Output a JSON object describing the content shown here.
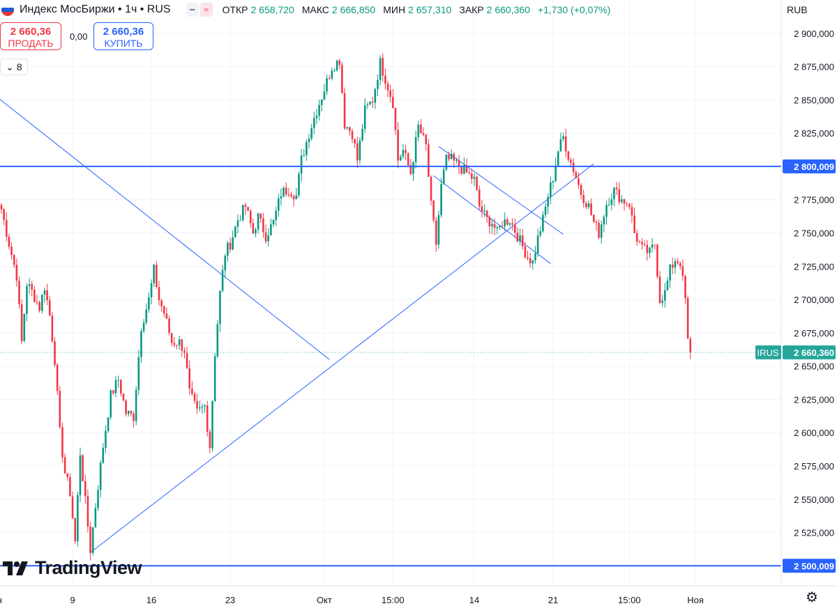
{
  "header": {
    "symbol": "Индекс МосБиржи • 1ч • RUS",
    "flag_colors": [
      "#ffffff",
      "#1e5bd8",
      "#e53935"
    ],
    "ohlc": [
      {
        "key": "ОТКР",
        "value": "2 658,720"
      },
      {
        "key": "МАКС",
        "value": "2 666,850"
      },
      {
        "key": "МИН",
        "value": "2 657,310"
      },
      {
        "key": "ЗАКР",
        "value": "2 660,360"
      }
    ],
    "change": "+1,730 (+0,07%)"
  },
  "trade": {
    "sell_price": "2 660,36",
    "sell_label": "ПРОДАТЬ",
    "spread": "0,00",
    "buy_price": "2 660,36",
    "buy_label": "КУПИТЬ"
  },
  "indicators_count": "8",
  "currency": "RUB",
  "logo_text": "TradingView",
  "colors": {
    "up": "#089981",
    "down": "#f23645",
    "hline": "#2962ff",
    "trendline": "#2962ff",
    "grid": "#f0f3fa",
    "price_tag": "#26a69a"
  },
  "chart_data": {
    "type": "candlestick",
    "ylim": [
      2485,
      2925
    ],
    "y_ticks": [
      2900,
      2875,
      2850,
      2825,
      2800,
      2775,
      2750,
      2725,
      2700,
      2675,
      2650,
      2625,
      2600,
      2575,
      2550,
      2525
    ],
    "y_tick_labels": [
      "2 900,000",
      "2 875,000",
      "2 850,000",
      "2 825,000",
      "2 800,000",
      "2 775,000",
      "2 750,000",
      "2 725,000",
      "2 700,000",
      "2 675,000",
      "2 650,000",
      "2 625,000",
      "2 600,000",
      "2 575,000",
      "2 550,000",
      "2 525,000"
    ],
    "x_ticks": [
      "Сен",
      "9",
      "16",
      "23",
      "Окт",
      "15:00",
      "14",
      "21",
      "15:00",
      "Ноя"
    ],
    "x_tick_index": [
      -3,
      28,
      59,
      90,
      127,
      154,
      186,
      217,
      247,
      273
    ],
    "horizontal_lines": [
      {
        "value": 2800.009,
        "label": "2 800,009"
      },
      {
        "value": 2500.009,
        "label": "2 500,009"
      }
    ],
    "last_price": {
      "value": 2660.36,
      "label": "2 660,360",
      "tag": "IRUS"
    },
    "trendlines": [
      {
        "p1": [
          -1,
          2851
        ],
        "p2": [
          129,
          2655
        ]
      },
      {
        "p1": [
          35,
          2510
        ],
        "p2": [
          233,
          2802
        ]
      },
      {
        "p1": [
          172,
          2815
        ],
        "p2": [
          221,
          2749
        ]
      },
      {
        "p1": [
          170,
          2793
        ],
        "p2": [
          216,
          2727
        ]
      }
    ],
    "price_path": [
      [
        0,
        2768
      ],
      [
        3,
        2742
      ],
      [
        6,
        2718
      ],
      [
        8,
        2668
      ],
      [
        10,
        2712
      ],
      [
        12,
        2706
      ],
      [
        15,
        2694
      ],
      [
        17,
        2710
      ],
      [
        19,
        2688
      ],
      [
        21,
        2655
      ],
      [
        23,
        2600
      ],
      [
        25,
        2570
      ],
      [
        27,
        2555
      ],
      [
        29,
        2518
      ],
      [
        31,
        2585
      ],
      [
        33,
        2548
      ],
      [
        35,
        2512
      ],
      [
        37,
        2545
      ],
      [
        40,
        2590
      ],
      [
        43,
        2628
      ],
      [
        46,
        2640
      ],
      [
        49,
        2615
      ],
      [
        52,
        2612
      ],
      [
        55,
        2680
      ],
      [
        58,
        2700
      ],
      [
        60,
        2722
      ],
      [
        62,
        2700
      ],
      [
        64,
        2690
      ],
      [
        67,
        2668
      ],
      [
        70,
        2668
      ],
      [
        72,
        2662
      ],
      [
        74,
        2630
      ],
      [
        77,
        2615
      ],
      [
        80,
        2620
      ],
      [
        82,
        2590
      ],
      [
        84,
        2660
      ],
      [
        86,
        2705
      ],
      [
        88,
        2735
      ],
      [
        90,
        2742
      ],
      [
        93,
        2760
      ],
      [
        96,
        2770
      ],
      [
        99,
        2750
      ],
      [
        101,
        2762
      ],
      [
        104,
        2748
      ],
      [
        107,
        2758
      ],
      [
        110,
        2780
      ],
      [
        113,
        2783
      ],
      [
        116,
        2778
      ],
      [
        118,
        2805
      ],
      [
        121,
        2825
      ],
      [
        124,
        2842
      ],
      [
        127,
        2858
      ],
      [
        130,
        2875
      ],
      [
        133,
        2880
      ],
      [
        135,
        2832
      ],
      [
        138,
        2825
      ],
      [
        140,
        2805
      ],
      [
        143,
        2842
      ],
      [
        146,
        2850
      ],
      [
        149,
        2878
      ],
      [
        152,
        2860
      ],
      [
        154,
        2848
      ],
      [
        156,
        2805
      ],
      [
        158,
        2812
      ],
      [
        161,
        2795
      ],
      [
        164,
        2830
      ],
      [
        167,
        2815
      ],
      [
        169,
        2770
      ],
      [
        171,
        2742
      ],
      [
        173,
        2785
      ],
      [
        175,
        2805
      ],
      [
        177,
        2805
      ],
      [
        180,
        2800
      ],
      [
        183,
        2795
      ],
      [
        186,
        2790
      ],
      [
        188,
        2770
      ],
      [
        191,
        2760
      ],
      [
        193,
        2758
      ],
      [
        195,
        2750
      ],
      [
        197,
        2758
      ],
      [
        200,
        2760
      ],
      [
        203,
        2748
      ],
      [
        205,
        2740
      ],
      [
        207,
        2732
      ],
      [
        209,
        2728
      ],
      [
        211,
        2746
      ],
      [
        213,
        2760
      ],
      [
        215,
        2778
      ],
      [
        217,
        2792
      ],
      [
        219,
        2812
      ],
      [
        221,
        2822
      ],
      [
        223,
        2808
      ],
      [
        225,
        2798
      ],
      [
        228,
        2780
      ],
      [
        231,
        2770
      ],
      [
        233,
        2758
      ],
      [
        235,
        2750
      ],
      [
        238,
        2772
      ],
      [
        241,
        2782
      ],
      [
        244,
        2775
      ],
      [
        247,
        2772
      ],
      [
        249,
        2750
      ],
      [
        252,
        2738
      ],
      [
        255,
        2735
      ],
      [
        257,
        2742
      ],
      [
        259,
        2700
      ],
      [
        261,
        2705
      ],
      [
        263,
        2722
      ],
      [
        265,
        2730
      ],
      [
        267,
        2728
      ],
      [
        269,
        2700
      ],
      [
        270,
        2668
      ],
      [
        271,
        2660
      ]
    ]
  }
}
